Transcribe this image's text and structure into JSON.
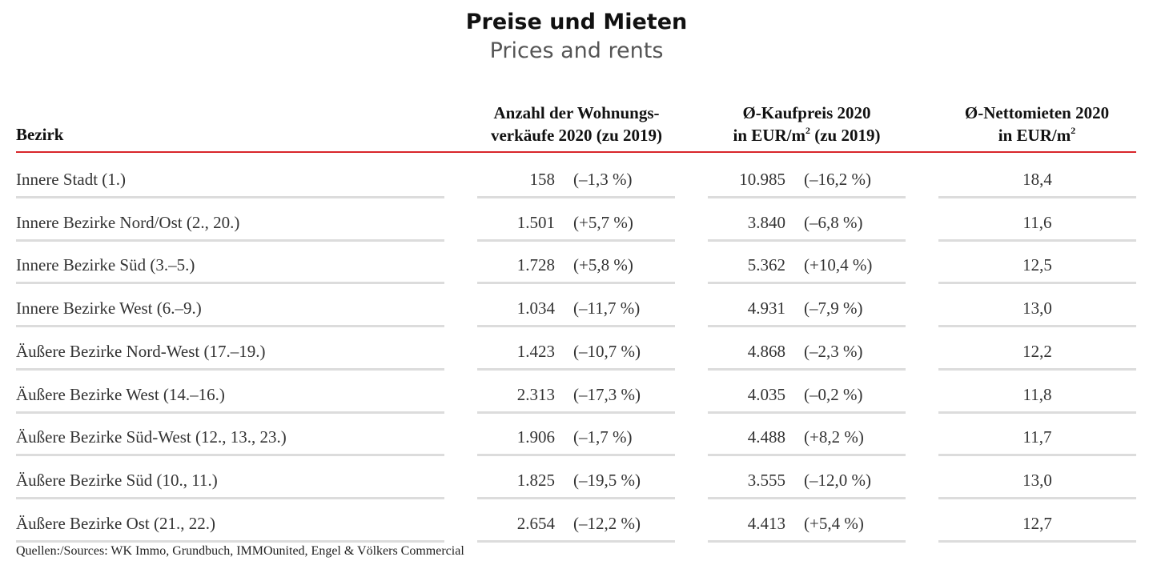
{
  "title": "Preise und Mieten",
  "subtitle": "Prices and rents",
  "headers": {
    "bezirk": "Bezirk",
    "sales_line1": "Anzahl der Wohnungs-",
    "sales_line2": "verkäufe 2020 (zu 2019)",
    "price_line1": "Ø-Kaufpreis 2020",
    "price_line2_a": "in EUR/m",
    "price_line2_sup": "2",
    "price_line2_b": " (zu 2019)",
    "rent_line1": "Ø-Nettomieten 2020",
    "rent_line2_a": "in EUR/m",
    "rent_line2_sup": "2"
  },
  "accent_color": "#d9262b",
  "rows": [
    {
      "name": "Innere Stadt (1.)",
      "sales": "158",
      "sales_change": "(–1,3 %)",
      "price": "10.985",
      "price_change": "(–16,2 %)",
      "rent": "18,4"
    },
    {
      "name": "Innere Bezirke Nord/Ost (2., 20.)",
      "sales": "1.501",
      "sales_change": "(+5,7 %)",
      "price": "3.840",
      "price_change": "(–6,8 %)",
      "rent": "11,6"
    },
    {
      "name": "Innere Bezirke Süd (3.–5.)",
      "sales": "1.728",
      "sales_change": "(+5,8 %)",
      "price": "5.362",
      "price_change": "(+10,4 %)",
      "rent": "12,5"
    },
    {
      "name": "Innere Bezirke West (6.–9.)",
      "sales": "1.034",
      "sales_change": "(–11,7 %)",
      "price": "4.931",
      "price_change": "(–7,9 %)",
      "rent": "13,0"
    },
    {
      "name": "Äußere Bezirke Nord-West (17.–19.)",
      "sales": "1.423",
      "sales_change": "(–10,7 %)",
      "price": "4.868",
      "price_change": "(–2,3 %)",
      "rent": "12,2"
    },
    {
      "name": "Äußere Bezirke West (14.–16.)",
      "sales": "2.313",
      "sales_change": "(–17,3 %)",
      "price": "4.035",
      "price_change": "(–0,2 %)",
      "rent": "11,8"
    },
    {
      "name": "Äußere Bezirke Süd-West (12., 13., 23.)",
      "sales": "1.906",
      "sales_change": "(–1,7 %)",
      "price": "4.488",
      "price_change": "(+8,2 %)",
      "rent": "11,7"
    },
    {
      "name": "Äußere Bezirke Süd (10., 11.)",
      "sales": "1.825",
      "sales_change": "(–19,5 %)",
      "price": "3.555",
      "price_change": "(–12,0 %)",
      "rent": "13,0"
    },
    {
      "name": "Äußere Bezirke Ost (21., 22.)",
      "sales": "2.654",
      "sales_change": "(–12,2 %)",
      "price": "4.413",
      "price_change": "(+5,4 %)",
      "rent": "12,7"
    }
  ],
  "source": "Quellen:/Sources: WK Immo, Grundbuch, IMMOunited, Engel & Völkers Commercial"
}
